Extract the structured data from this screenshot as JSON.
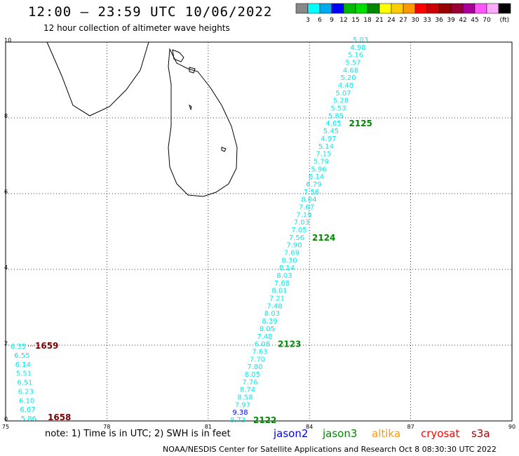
{
  "header": {
    "title": "12:00 – 23:59 UTC 10/06/2022",
    "subtitle": "12 hour collection of altimeter wave heights"
  },
  "colors": {
    "cyan": "#00ecec",
    "blue": "#0000ff",
    "green": "#008800",
    "darkred": "#7a0000",
    "orange": "#ff9900",
    "red": "#ff0000",
    "maroon": "#aa0000"
  },
  "legend": {
    "swatches": [
      "#888888",
      "#00ffff",
      "#00aaee",
      "#0000ff",
      "#00bb00",
      "#00dd00",
      "#008800",
      "#ffff00",
      "#ffcc00",
      "#ff9900",
      "#ff0000",
      "#cc0000",
      "#990000",
      "#990033",
      "#aa0099",
      "#ff55ff",
      "#ffaaff",
      "#000000"
    ],
    "labels": [
      "3",
      "6",
      "9",
      "12",
      "15",
      "18",
      "21",
      "24",
      "27",
      "30",
      "33",
      "36",
      "39",
      "42",
      "45",
      "70"
    ],
    "unit": "(ft)"
  },
  "axes": {
    "x_ticks": [
      "75",
      "78",
      "81",
      "84",
      "87",
      "90"
    ],
    "y_ticks": [
      "0",
      "2",
      "4",
      "6",
      "8",
      "10"
    ]
  },
  "tracks": [
    {
      "id": "east",
      "values": [
        "5.03",
        "4.98",
        "5.16",
        "5.57",
        "4.68",
        "5.20",
        "4.48",
        "5.07",
        "5.28",
        "5.53",
        "5.85",
        "4.65",
        "5.45",
        "4.97",
        "5.14",
        "7.15",
        "5.79",
        "5.96",
        "6.14",
        "6.79",
        "7.56",
        "8.04",
        "7.67",
        "7.19",
        "7.03",
        "7.05",
        "7.56",
        "7.90",
        "7.69",
        "8.30",
        "8.14",
        "8.03",
        "7.68",
        "8.01",
        "7.21",
        "7.48",
        "8.03",
        "8.39",
        "8.05",
        "7.48",
        "6.08",
        "7.63",
        "7.70",
        "7.80",
        "8.05",
        "7.76",
        "8.74",
        "8.58",
        "7.97",
        "9.38",
        "8.73"
      ],
      "times": [
        {
          "label": "2125",
          "after": 11
        },
        {
          "label": "2124",
          "after": 26
        },
        {
          "label": "2123",
          "after": 40
        },
        {
          "label": "2122",
          "after": 50
        }
      ]
    },
    {
      "id": "west",
      "values": [
        "6.35",
        "6.55",
        "6.14",
        "5.51",
        "6.51",
        "6.23",
        "6.10",
        "6.67",
        "5.86"
      ],
      "times": [
        {
          "label": "1659",
          "after": 0
        },
        {
          "label": "1658",
          "after": 8
        }
      ]
    }
  ],
  "footer": {
    "note": "note:  1) Time is in UTC;  2) SWH is in feet",
    "satellites": [
      "jason2",
      "jason3",
      "altika",
      "cryosat",
      "s3a"
    ],
    "credit": "NOAA/NESDIS Center for Satellite Applications and Research    Oct  8 08:30:30 UTC 2022"
  }
}
